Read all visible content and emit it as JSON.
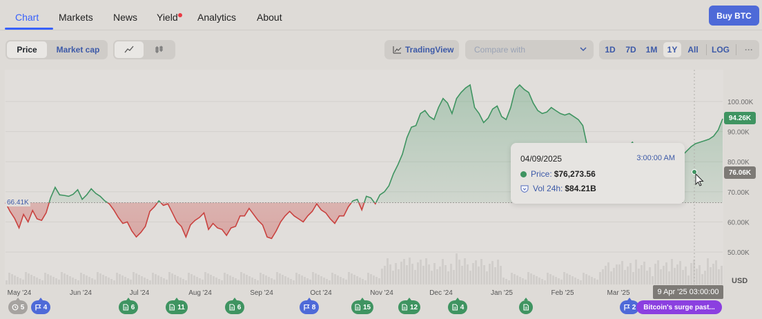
{
  "nav": {
    "tabs": [
      {
        "label": "Chart",
        "active": true
      },
      {
        "label": "Markets"
      },
      {
        "label": "News"
      },
      {
        "label": "Yield"
      },
      {
        "label": "Analytics"
      },
      {
        "label": "About"
      }
    ],
    "buy_label": "Buy BTC"
  },
  "toolbar": {
    "price_label": "Price",
    "marketcap_label": "Market cap",
    "line_icon": "line-chart-icon",
    "candle_icon": "candlestick-icon",
    "tradingview_label": "TradingView",
    "compare_placeholder": "Compare with",
    "ranges": [
      "1D",
      "7D",
      "1M",
      "1Y",
      "All",
      "LOG"
    ],
    "selected_range": "1Y",
    "more_label": "···"
  },
  "chart_data": {
    "type": "area",
    "baseline": 66.41,
    "baseline_label": "66.41K",
    "y_ticks": [
      "100.00K",
      "90.00K",
      "80.00K",
      "70.00K",
      "60.00K",
      "50.00K"
    ],
    "y_unit": "USD",
    "x_ticks": [
      "May '24",
      "Jun '24",
      "Jul '24",
      "Aug '24",
      "Sep '24",
      "Oct '24",
      "Nov '24",
      "Dec '24",
      "Jan '25",
      "Feb '25",
      "Mar '25"
    ],
    "current_price_label": "94.26K",
    "hover_price_label": "76.06K",
    "hover_time_label": "9 Apr '25 03:00:00",
    "ylim": [
      43,
      108
    ],
    "series": [
      {
        "values": [
          66.4,
          63.5,
          61.2,
          58.0,
          62.5,
          60.0,
          63.8,
          61.0,
          60.5,
          63.0,
          68.0,
          71.5,
          69.0,
          68.8,
          68.5,
          69.2,
          70.7,
          67.5,
          69.0,
          71.0,
          69.5,
          68.5,
          67.0,
          66.0,
          64.0,
          61.5,
          59.5,
          60.0,
          57.0,
          55.0,
          56.5,
          58.5,
          63.5,
          65.0,
          67.0,
          65.5,
          66.0,
          63.0,
          60.0,
          58.5,
          55.0,
          59.0,
          60.5,
          61.5,
          63.0,
          57.5,
          59.5,
          58.0,
          57.5,
          55.5,
          58.0,
          58.5,
          62.0,
          62.0,
          64.5,
          62.5,
          60.5,
          59.0,
          55.0,
          54.5,
          57.0,
          60.0,
          62.0,
          63.5,
          62.0,
          61.0,
          60.0,
          62.0,
          63.5,
          66.0,
          64.0,
          63.0,
          61.0,
          59.5,
          62.0,
          62.0,
          65.0,
          67.0,
          67.5,
          64.0,
          68.5,
          68.0,
          66.0,
          69.0,
          70.0,
          72.0,
          76.0,
          79.0,
          82.5,
          88.0,
          91.5,
          92.0,
          96.0,
          97.0,
          95.0,
          94.0,
          98.0,
          101.0,
          99.5,
          96.0,
          101.0,
          103.0,
          104.5,
          105.5,
          98.0,
          96.0,
          93.0,
          94.5,
          97.5,
          98.5,
          95.0,
          94.0,
          98.0,
          104.0,
          105.5,
          104.0,
          103.0,
          99.5,
          97.0,
          96.0,
          96.5,
          98.0,
          97.0,
          96.0,
          95.5,
          96.0,
          95.0,
          94.0,
          92.0,
          85.0,
          82.0,
          84.0,
          83.0,
          82.5,
          80.5,
          81.0,
          84.5,
          86.0,
          85.0,
          86.5,
          84.0,
          83.5,
          85.0,
          86.0,
          83.5,
          82.0,
          79.5,
          78.0,
          81.0,
          83.5,
          82.0,
          83.5,
          85.0,
          86.0,
          86.5,
          87.0,
          87.5,
          88.5,
          90.5,
          94.26
        ]
      }
    ]
  },
  "tooltip": {
    "date": "04/09/2025",
    "time": "3:00:00 AM",
    "price_label": "Price:",
    "price_value": "$76,273.56",
    "vol_label": "Vol 24h:",
    "vol_value": "$84.21B"
  },
  "events": {
    "items": [
      {
        "icon": "history-icon",
        "count": "5",
        "color": "#a6a3a0"
      },
      {
        "icon": "flag-icon",
        "count": "4",
        "color": "#4e6ad8"
      },
      {
        "icon": "document-icon",
        "count": "6",
        "color": "#3f9461"
      },
      {
        "icon": "document-icon",
        "count": "11",
        "color": "#3f9461"
      },
      {
        "icon": "document-icon",
        "count": "6",
        "color": "#3f9461"
      },
      {
        "icon": "flag-icon",
        "count": "8",
        "color": "#4e6ad8"
      },
      {
        "icon": "document-icon",
        "count": "15",
        "color": "#3f9461"
      },
      {
        "icon": "document-icon",
        "count": "12",
        "color": "#3f9461"
      },
      {
        "icon": "document-icon",
        "count": "4",
        "color": "#3f9461"
      },
      {
        "icon": "document-icon",
        "count": "",
        "color": "#3f9461"
      },
      {
        "icon": "flag-icon",
        "count": "2",
        "color": "#4e6ad8"
      }
    ],
    "pill_label": "Bitcoin's surge past..."
  },
  "colors": {
    "up": "#3f9461",
    "down": "#c9423f",
    "accent": "#3861fb"
  }
}
